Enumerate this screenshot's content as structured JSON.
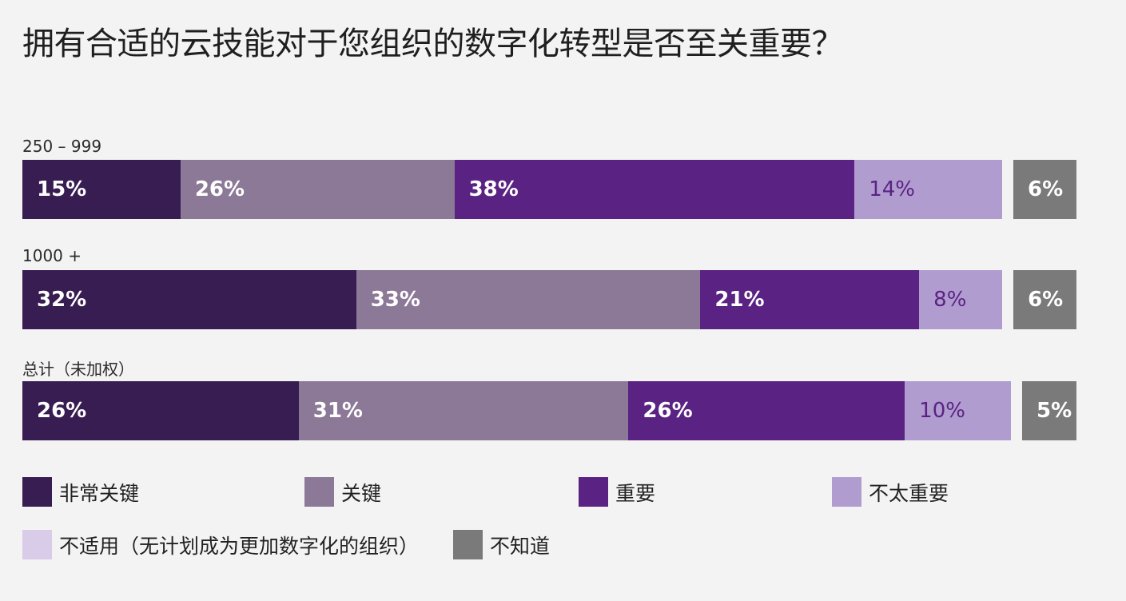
{
  "title": "拥有合适的云技能对于您组织的数字化转型是否至关重要？",
  "colors": {
    "非常关键": "#381d52",
    "关键": "#8c7897",
    "重要": "#5a2383",
    "不太重要": "#b19cd0",
    "不适用": "#d8cce8",
    "不知道": "#7a7a7a"
  },
  "chart_data": {
    "type": "bar",
    "orientation": "horizontal",
    "stacked": true,
    "title": "拥有合适的云技能对于您组织的数字化转型是否至关重要？",
    "categories": [
      "250 – 999",
      "1000 +",
      "总计（未加权）"
    ],
    "legend_placement": "bottom",
    "series": [
      {
        "name": "非常关键",
        "values": [
          15,
          32,
          26
        ],
        "labels": [
          "15%",
          "32%",
          "26%"
        ]
      },
      {
        "name": "关键",
        "values": [
          26,
          33,
          31
        ],
        "labels": [
          "26%",
          "33%",
          "31%"
        ]
      },
      {
        "name": "重要",
        "values": [
          38,
          21,
          26
        ],
        "labels": [
          "38%",
          "21%",
          "26%"
        ]
      },
      {
        "name": "不太重要",
        "values": [
          14,
          8,
          10
        ],
        "labels": [
          "14%",
          "8%",
          "10%"
        ]
      },
      {
        "name": "不适用（无计划成为更加数字化的组织）",
        "values": [
          1,
          1,
          1
        ],
        "labels": [
          "",
          "",
          ""
        ]
      },
      {
        "name": "不知道",
        "values": [
          6,
          6,
          5
        ],
        "labels": [
          "6%",
          "6%",
          "5%"
        ]
      }
    ]
  },
  "legend": [
    {
      "label": "非常关键",
      "color": "#381d52"
    },
    {
      "label": "关键",
      "color": "#8c7897"
    },
    {
      "label": "重要",
      "color": "#5a2383"
    },
    {
      "label": "不太重要",
      "color": "#b19cd0"
    },
    {
      "label": "不适用（无计划成为更加数字化的组织）",
      "color": "#d8cce8"
    },
    {
      "label": "不知道",
      "color": "#7a7a7a"
    }
  ]
}
